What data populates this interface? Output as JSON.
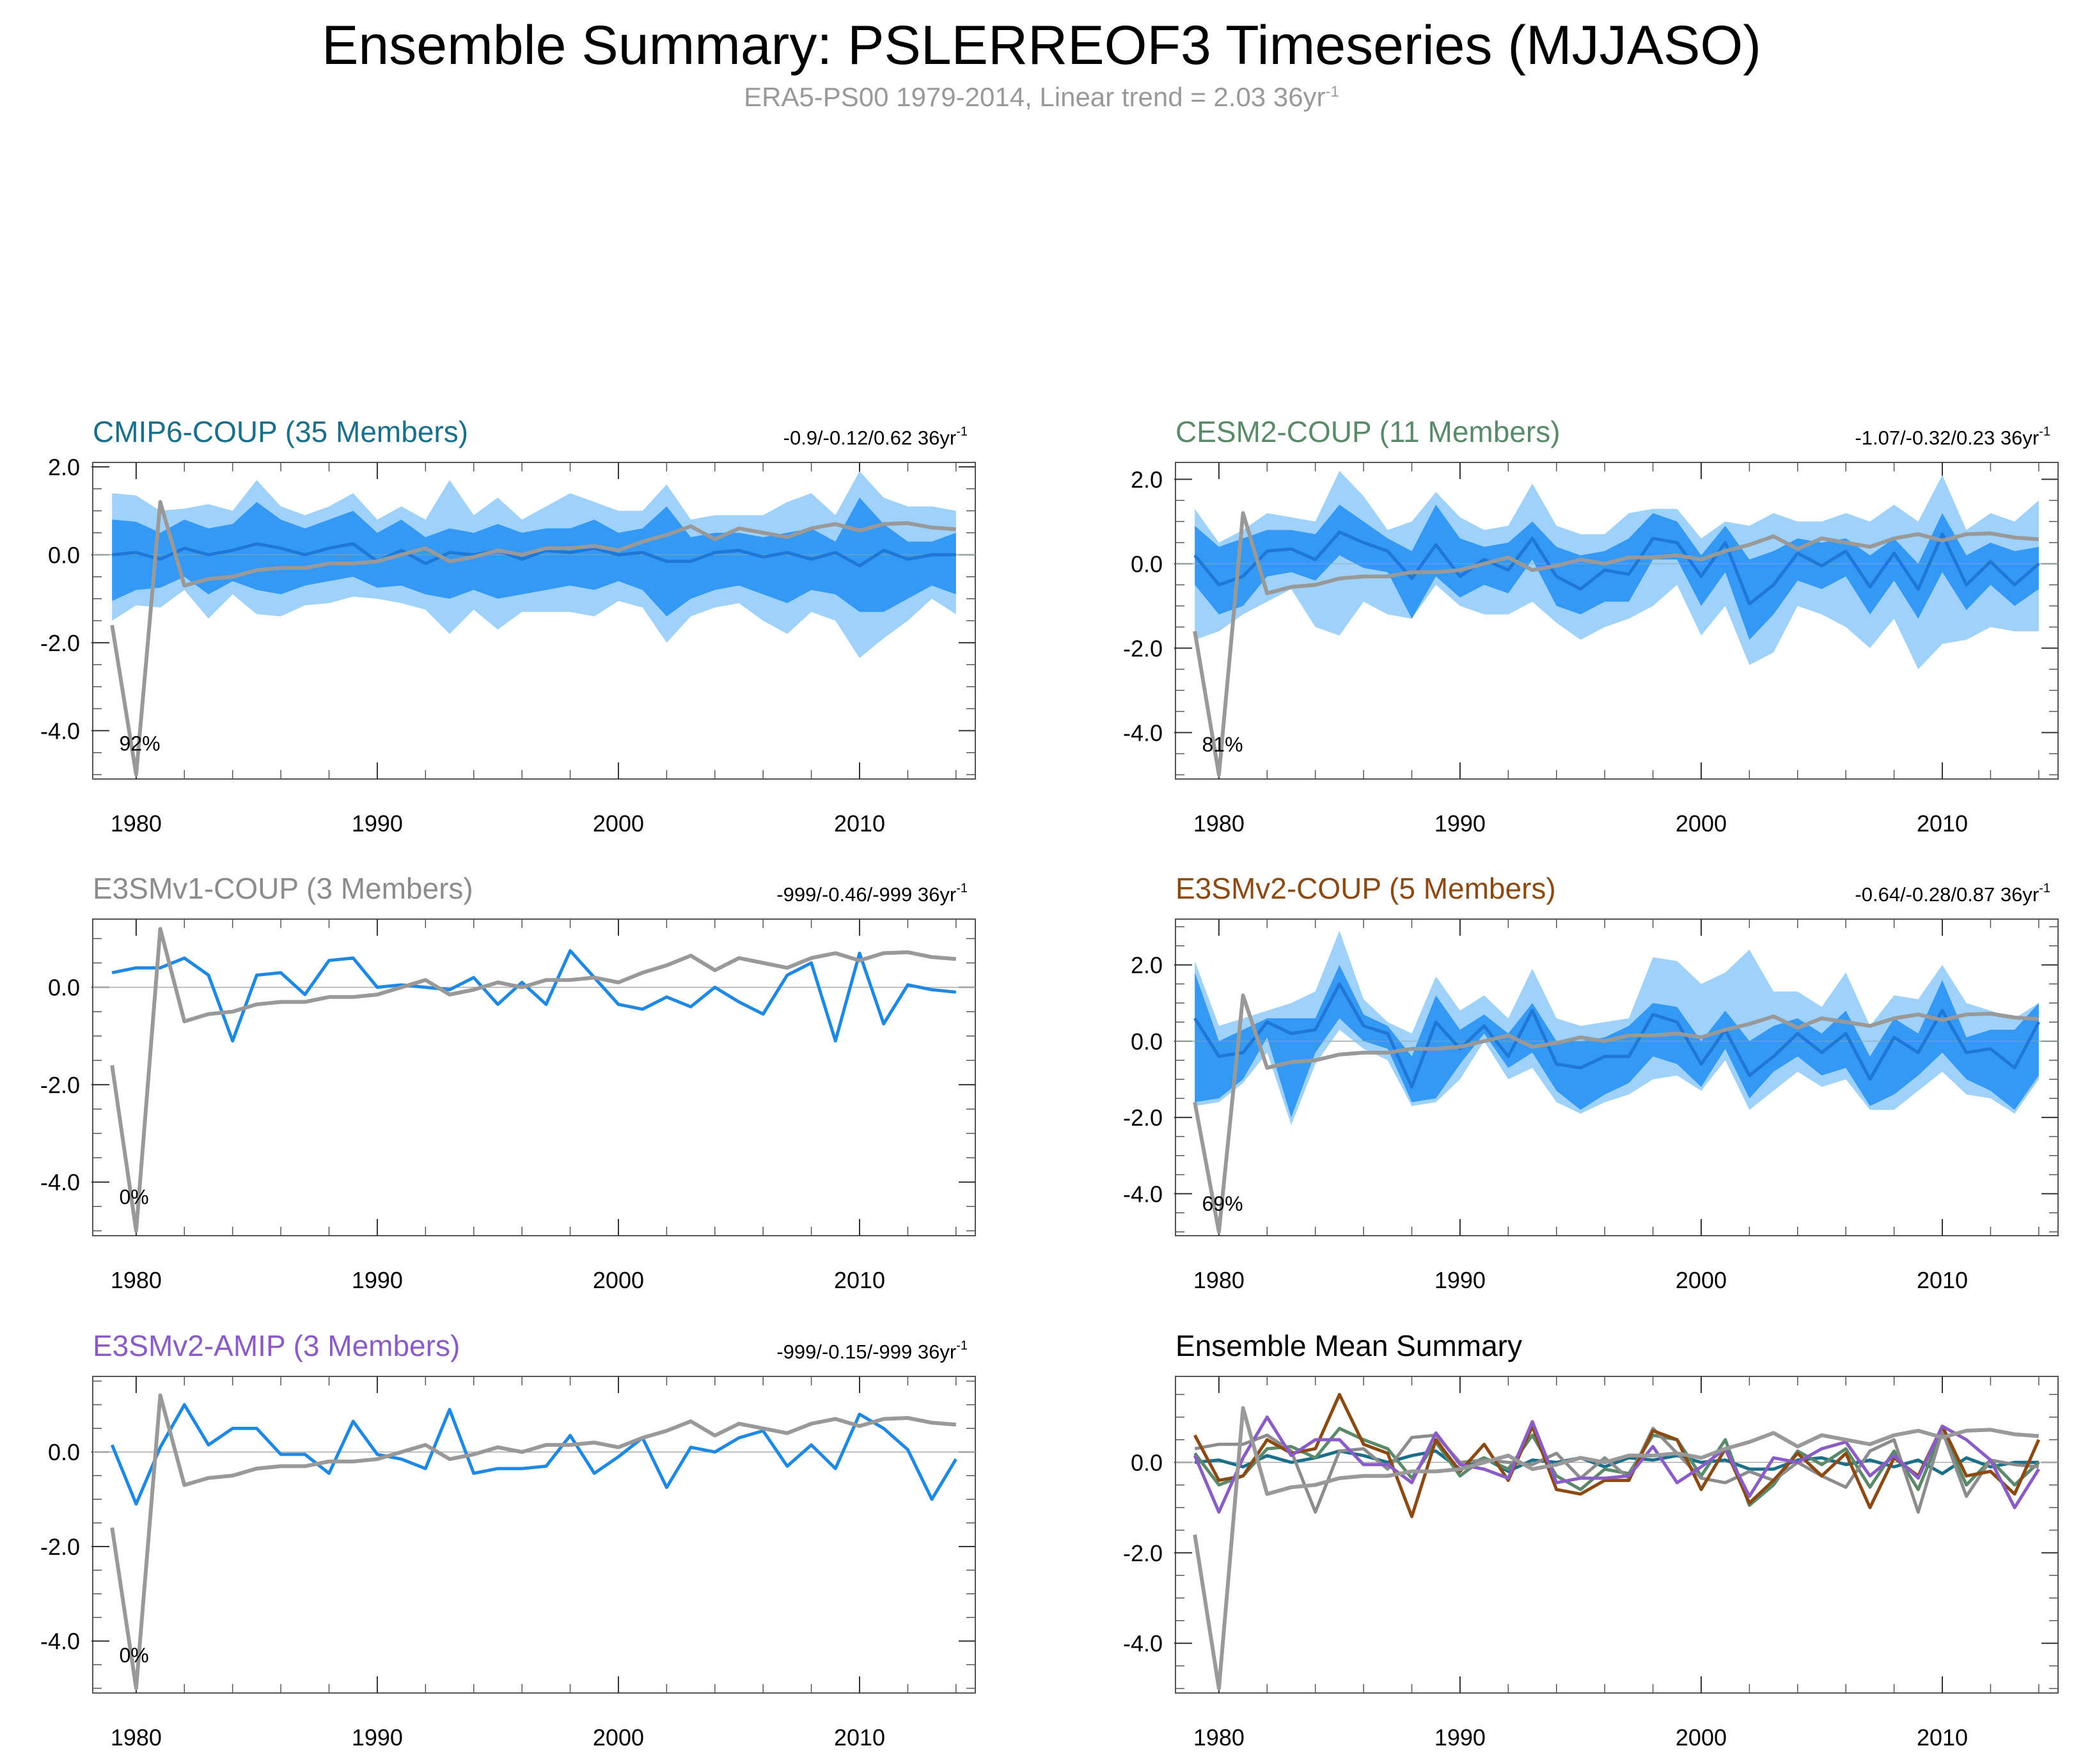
{
  "title": "Ensemble Summary: PSLERREOF3 Timeseries (MJJASO)",
  "subtitle": {
    "text": "ERA5-PS00 1979-2014, Linear trend = 2.03 36yr",
    "superscript": "-1"
  },
  "chart_data": {
    "type": "line",
    "years": [
      1979,
      1980,
      1981,
      1982,
      1983,
      1984,
      1985,
      1986,
      1987,
      1988,
      1989,
      1990,
      1991,
      1992,
      1993,
      1994,
      1995,
      1996,
      1997,
      1998,
      1999,
      2000,
      2001,
      2002,
      2003,
      2004,
      2005,
      2006,
      2007,
      2008,
      2009,
      2010,
      2011,
      2012,
      2013,
      2014
    ],
    "x_ticks": [
      "1980",
      "1990",
      "2000",
      "2010"
    ],
    "x_tick_values": [
      1980,
      1990,
      2000,
      2010
    ],
    "observation": {
      "name": "ERA5-PS00",
      "color": "#999999",
      "values": [
        -1.6,
        -5.0,
        1.2,
        -0.7,
        -0.55,
        -0.5,
        -0.35,
        -0.3,
        -0.3,
        -0.2,
        -0.2,
        -0.15,
        0.0,
        0.15,
        -0.15,
        -0.05,
        0.1,
        0.0,
        0.15,
        0.15,
        0.2,
        0.1,
        0.3,
        0.45,
        0.65,
        0.35,
        0.6,
        0.5,
        0.4,
        0.6,
        0.7,
        0.55,
        0.7,
        0.72,
        0.62,
        0.58
      ]
    },
    "panels": [
      {
        "id": "cmip6",
        "title": "CMIP6-COUP (35 Members)",
        "title_color": "#1a6f8a",
        "trend": "-0.9/-0.12/0.62 36yr",
        "trend_sup": "-1",
        "percent": "92%",
        "y_ticks": [
          "2.0",
          "0.0",
          "-2.0",
          "-4.0"
        ],
        "y_tick_values": [
          2,
          0,
          -2,
          -4
        ],
        "ylim": [
          -5.1,
          2.1
        ],
        "mean": [
          0.0,
          0.05,
          -0.1,
          0.15,
          0.0,
          0.1,
          0.25,
          0.15,
          0.0,
          0.15,
          0.25,
          -0.15,
          0.1,
          -0.2,
          0.05,
          0.0,
          0.1,
          -0.1,
          0.1,
          0.05,
          0.15,
          0.0,
          0.05,
          -0.15,
          -0.15,
          0.05,
          0.1,
          -0.05,
          0.05,
          -0.1,
          0.05,
          -0.25,
          0.1,
          -0.1,
          0.0,
          0.0
        ],
        "inner_upper": [
          0.8,
          0.75,
          0.5,
          0.8,
          0.6,
          0.7,
          1.2,
          0.8,
          0.6,
          0.8,
          1.0,
          0.5,
          0.8,
          0.4,
          0.6,
          0.5,
          0.7,
          0.5,
          0.6,
          0.6,
          0.8,
          0.5,
          0.6,
          1.1,
          0.4,
          0.5,
          0.5,
          0.4,
          0.5,
          0.6,
          0.3,
          1.3,
          0.7,
          0.3,
          0.3,
          0.5
        ],
        "inner_lower": [
          -1.05,
          -0.8,
          -0.75,
          -0.5,
          -0.9,
          -0.6,
          -0.8,
          -0.9,
          -0.7,
          -0.6,
          -0.5,
          -0.75,
          -0.7,
          -0.9,
          -1.0,
          -0.8,
          -1.0,
          -0.9,
          -0.8,
          -0.7,
          -0.8,
          -0.6,
          -0.8,
          -1.4,
          -1.0,
          -0.8,
          -0.7,
          -0.9,
          -1.1,
          -0.8,
          -0.9,
          -1.3,
          -1.3,
          -1.0,
          -0.7,
          -0.9
        ],
        "outer_upper": [
          1.4,
          1.35,
          1.0,
          1.05,
          1.15,
          1.0,
          1.7,
          1.1,
          0.9,
          1.1,
          1.4,
          0.8,
          1.1,
          0.8,
          1.7,
          0.9,
          1.3,
          0.8,
          1.1,
          1.4,
          1.2,
          1.0,
          1.0,
          1.6,
          0.8,
          0.9,
          0.9,
          0.9,
          1.2,
          1.4,
          0.9,
          1.9,
          1.3,
          1.1,
          1.1,
          1.0
        ],
        "outer_lower": [
          -1.5,
          -1.15,
          -1.2,
          -0.8,
          -1.45,
          -0.9,
          -1.35,
          -1.4,
          -1.15,
          -1.1,
          -0.95,
          -1.0,
          -1.1,
          -1.25,
          -1.8,
          -1.25,
          -1.7,
          -1.3,
          -1.3,
          -1.3,
          -1.4,
          -1.05,
          -1.2,
          -2.0,
          -1.4,
          -1.2,
          -1.1,
          -1.5,
          -1.8,
          -1.3,
          -1.5,
          -2.35,
          -1.9,
          -1.5,
          -1.0,
          -1.35
        ]
      },
      {
        "id": "cesm2",
        "title": "CESM2-COUP (11 Members)",
        "title_color": "#5a8a6a",
        "trend": "-1.07/-0.32/0.23 36yr",
        "trend_sup": "-1",
        "percent": "81%",
        "y_ticks": [
          "2.0",
          "0.0",
          "-2.0",
          "-4.0"
        ],
        "y_tick_values": [
          2,
          0,
          -2,
          -4
        ],
        "ylim": [
          -5.1,
          2.4
        ],
        "mean": [
          0.2,
          -0.5,
          -0.3,
          0.3,
          0.35,
          0.1,
          0.75,
          0.5,
          0.3,
          -0.35,
          0.45,
          -0.3,
          0.1,
          -0.15,
          0.6,
          -0.3,
          -0.6,
          -0.15,
          -0.25,
          0.6,
          0.5,
          -0.3,
          0.5,
          -0.95,
          -0.5,
          0.25,
          -0.05,
          0.3,
          -0.55,
          0.25,
          -0.6,
          0.7,
          -0.5,
          0.05,
          -0.5,
          0.0
        ],
        "inner_upper": [
          0.9,
          0.4,
          0.6,
          0.8,
          0.8,
          0.7,
          1.4,
          1.0,
          0.6,
          0.3,
          1.4,
          0.6,
          0.4,
          0.5,
          1.0,
          0.4,
          0.2,
          0.3,
          0.6,
          1.2,
          1.0,
          0.2,
          0.9,
          0.1,
          0.3,
          0.6,
          0.5,
          0.6,
          0.2,
          0.6,
          0.0,
          1.2,
          0.2,
          0.5,
          0.3,
          0.4
        ],
        "inner_lower": [
          -0.5,
          -1.2,
          -1.0,
          -0.3,
          -0.2,
          -0.4,
          0.2,
          -0.1,
          -0.2,
          -1.3,
          -0.3,
          -0.8,
          -0.5,
          -0.7,
          0.1,
          -1.0,
          -1.2,
          -0.9,
          -0.9,
          0.1,
          0.1,
          -1.0,
          -0.2,
          -1.8,
          -1.2,
          -0.4,
          -0.6,
          -0.3,
          -1.2,
          -0.4,
          -1.3,
          -0.2,
          -1.1,
          -0.5,
          -1.0,
          -0.6
        ],
        "outer_upper": [
          1.3,
          0.5,
          0.8,
          1.2,
          1.1,
          1.0,
          2.2,
          1.6,
          0.8,
          1.0,
          1.7,
          1.1,
          0.8,
          0.9,
          1.9,
          0.9,
          0.7,
          0.7,
          1.2,
          1.3,
          1.3,
          0.6,
          1.0,
          0.9,
          1.2,
          1.0,
          1.0,
          1.2,
          1.0,
          1.4,
          1.0,
          2.1,
          0.8,
          1.2,
          1.0,
          1.5
        ],
        "outer_lower": [
          -1.8,
          -1.6,
          -1.2,
          -0.9,
          -0.6,
          -1.5,
          -1.7,
          -0.9,
          -1.2,
          -1.3,
          -0.5,
          -1.0,
          -1.2,
          -1.2,
          -0.9,
          -1.4,
          -1.8,
          -1.5,
          -1.3,
          -1.0,
          -0.5,
          -1.7,
          -1.0,
          -2.4,
          -2.1,
          -1.0,
          -1.2,
          -1.5,
          -2.0,
          -1.3,
          -2.5,
          -1.9,
          -1.8,
          -1.5,
          -1.6,
          -1.6
        ]
      },
      {
        "id": "e3smv1",
        "title": "E3SMv1-COUP (3 Members)",
        "title_color": "#8c8c8c",
        "trend": "-999/-0.46/-999 36yr",
        "trend_sup": "-1",
        "percent": "0%",
        "y_ticks": [
          "0.0",
          "-2.0",
          "-4.0"
        ],
        "y_tick_values": [
          0,
          -2,
          -4
        ],
        "ylim": [
          -5.1,
          1.4
        ],
        "mean": [
          0.3,
          0.4,
          0.4,
          0.6,
          0.25,
          -1.1,
          0.25,
          0.3,
          -0.15,
          0.55,
          0.6,
          0.0,
          0.05,
          0.0,
          -0.05,
          0.2,
          -0.35,
          0.1,
          -0.35,
          0.75,
          0.2,
          -0.35,
          -0.45,
          -0.2,
          -0.4,
          0.0,
          -0.3,
          -0.55,
          0.25,
          0.5,
          -1.1,
          0.7,
          -0.75,
          0.05,
          -0.05,
          -0.1
        ]
      },
      {
        "id": "e3smv2coup",
        "title": "E3SMv2-COUP (5 Members)",
        "title_color": "#8c4a12",
        "trend": "-0.64/-0.28/0.87 36yr",
        "trend_sup": "-1",
        "percent": "69%",
        "y_ticks": [
          "2.0",
          "0.0",
          "-2.0",
          "-4.0"
        ],
        "y_tick_values": [
          2,
          0,
          -2,
          -4
        ],
        "ylim": [
          -5.1,
          3.2
        ],
        "mean": [
          0.6,
          -0.4,
          -0.3,
          0.5,
          0.2,
          0.3,
          1.5,
          0.4,
          0.2,
          -1.2,
          0.5,
          -0.2,
          0.4,
          -0.4,
          0.8,
          -0.6,
          -0.7,
          -0.4,
          -0.4,
          0.7,
          0.5,
          -0.6,
          0.3,
          -0.9,
          -0.4,
          0.2,
          -0.3,
          0.2,
          -1.0,
          0.1,
          -0.3,
          0.8,
          -0.3,
          -0.2,
          -0.7,
          0.5
        ],
        "inner_upper": [
          1.8,
          0.0,
          0.3,
          0.6,
          0.6,
          0.6,
          2.0,
          0.7,
          0.4,
          -0.4,
          1.2,
          0.3,
          0.7,
          0.2,
          1.0,
          0.0,
          0.0,
          0.1,
          0.4,
          1.0,
          0.9,
          0.0,
          0.8,
          0.0,
          0.4,
          0.6,
          0.2,
          0.8,
          -0.4,
          0.6,
          0.2,
          1.6,
          0.1,
          0.3,
          0.3,
          1.0
        ],
        "inner_lower": [
          -1.6,
          -1.5,
          -1.0,
          0.1,
          -2.0,
          -0.3,
          0.6,
          0.0,
          -0.2,
          -1.6,
          -1.5,
          -0.6,
          0.2,
          -0.7,
          -0.3,
          -1.3,
          -1.8,
          -1.4,
          -1.1,
          -0.4,
          -0.6,
          -1.2,
          -0.2,
          -1.5,
          -0.8,
          -0.4,
          -0.9,
          -0.7,
          -1.7,
          -1.4,
          -0.9,
          -0.3,
          -1.0,
          -1.3,
          -1.8,
          -0.9
        ],
        "outer_upper": [
          2.1,
          0.4,
          0.6,
          0.8,
          1.0,
          1.3,
          2.9,
          1.1,
          0.5,
          0.2,
          1.7,
          0.8,
          1.2,
          0.6,
          1.9,
          0.6,
          0.4,
          0.5,
          0.6,
          2.2,
          2.1,
          1.5,
          1.8,
          2.4,
          1.3,
          1.3,
          0.9,
          1.8,
          0.4,
          1.2,
          1.1,
          2.0,
          1.0,
          0.8,
          0.6,
          1.0
        ],
        "outer_lower": [
          -1.7,
          -1.6,
          -1.1,
          -0.3,
          -2.2,
          -0.6,
          0.3,
          -0.2,
          -0.5,
          -1.7,
          -1.6,
          -1.0,
          0.0,
          -1.0,
          -0.7,
          -1.6,
          -1.9,
          -1.6,
          -1.4,
          -1.0,
          -0.9,
          -1.3,
          -0.5,
          -1.8,
          -1.3,
          -0.8,
          -1.2,
          -1.0,
          -1.8,
          -1.8,
          -1.3,
          -0.8,
          -1.4,
          -1.5,
          -1.9,
          -1.0
        ]
      },
      {
        "id": "e3smv2amip",
        "title": "E3SMv2-AMIP (3 Members)",
        "title_color": "#8a5cc8",
        "trend": "-999/-0.15/-999 36yr",
        "trend_sup": "-1",
        "percent": "0%",
        "y_ticks": [
          "0.0",
          "-2.0",
          "-4.0"
        ],
        "y_tick_values": [
          0,
          -2,
          -4
        ],
        "ylim": [
          -5.1,
          1.6
        ],
        "mean": [
          0.15,
          -1.1,
          0.1,
          1.0,
          0.15,
          0.5,
          0.5,
          -0.05,
          -0.05,
          -0.45,
          0.65,
          -0.05,
          -0.15,
          -0.35,
          0.9,
          -0.45,
          -0.35,
          -0.35,
          -0.3,
          0.35,
          -0.45,
          -0.1,
          0.3,
          -0.75,
          0.1,
          0.0,
          0.3,
          0.45,
          -0.3,
          0.15,
          -0.35,
          0.8,
          0.5,
          0.05,
          -1.0,
          -0.15
        ]
      }
    ],
    "summary": {
      "title": "Ensemble Mean Summary",
      "y_ticks": [
        "0.0",
        "-2.0",
        "-4.0"
      ],
      "y_tick_values": [
        0,
        -2,
        -4
      ],
      "ylim": [
        -5.1,
        1.9
      ],
      "series": [
        {
          "name": "CMIP6-COUP",
          "color": "#1a6f8a",
          "ref": "cmip6"
        },
        {
          "name": "CESM2-COUP",
          "color": "#5a8a6a",
          "ref": "cesm2"
        },
        {
          "name": "E3SMv1-COUP",
          "color": "#8c8c8c",
          "ref": "e3smv1"
        },
        {
          "name": "E3SMv2-COUP",
          "color": "#8c4a12",
          "ref": "e3smv2coup"
        },
        {
          "name": "E3SMv2-AMIP",
          "color": "#8a5cc8",
          "ref": "e3smv2amip"
        }
      ]
    }
  }
}
